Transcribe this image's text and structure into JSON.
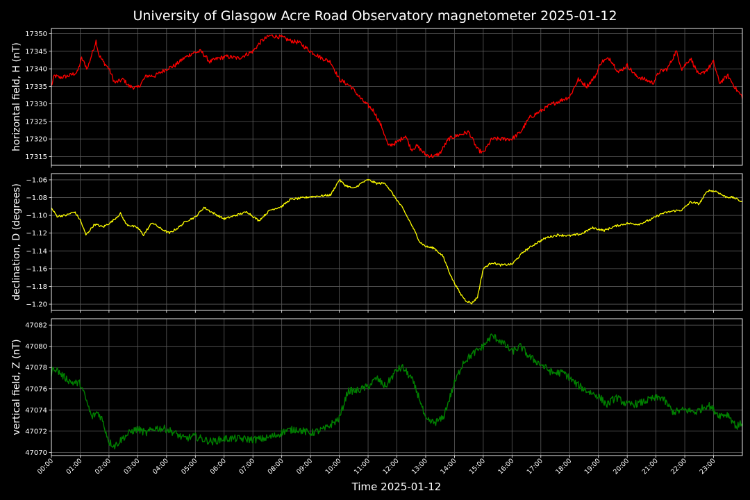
{
  "chart_data": {
    "type": "line",
    "title": "University of Glasgow Acre Road Observatory magnetometer 2025-01-12",
    "xlabel": "Time 2025-01-12",
    "x_ticks": [
      "00:00",
      "01:00",
      "02:00",
      "03:00",
      "04:00",
      "05:00",
      "06:00",
      "07:00",
      "08:00",
      "09:00",
      "10:00",
      "11:00",
      "12:00",
      "13:00",
      "14:00",
      "15:00",
      "16:00",
      "17:00",
      "18:00",
      "19:00",
      "20:00",
      "21:00",
      "22:00",
      "23:00"
    ],
    "xlim_hours": [
      0,
      24
    ],
    "grid": true,
    "background": "#000000",
    "panels": [
      {
        "ylabel": "horizontal field, H (nT)",
        "color": "#ff0000",
        "ylim": [
          17312.5,
          17351.5
        ],
        "yticks": [
          17315,
          17320,
          17325,
          17330,
          17335,
          17340,
          17345,
          17350
        ],
        "noise": 0.6,
        "x_hours": [
          0,
          0.1,
          0.3,
          0.6,
          0.9,
          1.05,
          1.25,
          1.55,
          1.65,
          1.8,
          2.0,
          2.2,
          2.5,
          2.7,
          3.0,
          3.3,
          3.6,
          4.0,
          4.3,
          4.6,
          4.9,
          5.2,
          5.5,
          5.8,
          6.1,
          6.5,
          7.0,
          7.3,
          7.6,
          8.0,
          8.3,
          8.6,
          9.0,
          9.4,
          9.7,
          10.0,
          10.4,
          10.8,
          11.2,
          11.5,
          11.7,
          12.0,
          12.3,
          12.5,
          12.7,
          13.0,
          13.3,
          13.5,
          13.8,
          14.1,
          14.5,
          14.8,
          15.0,
          15.3,
          15.6,
          16.0,
          16.3,
          16.6,
          17.0,
          17.4,
          17.7,
          18.0,
          18.3,
          18.6,
          18.9,
          19.1,
          19.4,
          19.7,
          20.0,
          20.3,
          20.6,
          20.9,
          21.1,
          21.4,
          21.7,
          21.9,
          22.2,
          22.5,
          22.8,
          23.0,
          23.2,
          23.5,
          23.8,
          24.0
        ],
        "values": [
          17335,
          17338,
          17337.5,
          17338,
          17339,
          17343,
          17340,
          17348,
          17344,
          17342,
          17340,
          17336,
          17337,
          17335,
          17334.5,
          17338,
          17338,
          17340,
          17341,
          17343,
          17344.5,
          17345,
          17342,
          17343,
          17343.5,
          17343,
          17345,
          17348,
          17349.5,
          17349,
          17348,
          17347.5,
          17345,
          17343,
          17342,
          17337,
          17335,
          17331,
          17328,
          17323,
          17318,
          17319,
          17321,
          17317,
          17318,
          17315.5,
          17315,
          17316,
          17320,
          17321,
          17322,
          17317,
          17316,
          17320,
          17320,
          17320,
          17322,
          17326,
          17328,
          17330,
          17331,
          17332,
          17337,
          17335,
          17338,
          17342,
          17343,
          17339,
          17341,
          17338,
          17337,
          17336,
          17339,
          17340,
          17345,
          17340,
          17343,
          17338,
          17340,
          17342,
          17336,
          17338,
          17334,
          17332
        ]
      },
      {
        "ylabel": "declination, D (degrees)",
        "color": "#ffff00",
        "ylim": [
          -1.207,
          -1.053
        ],
        "yticks": [
          -1.2,
          -1.18,
          -1.16,
          -1.14,
          -1.12,
          -1.1,
          -1.08,
          -1.06
        ],
        "noise": 0.0012,
        "x_hours": [
          0,
          0.2,
          0.5,
          0.8,
          1.0,
          1.2,
          1.5,
          1.8,
          2.1,
          2.4,
          2.6,
          2.8,
          3.0,
          3.2,
          3.5,
          3.8,
          4.1,
          4.4,
          4.7,
          5.0,
          5.3,
          5.6,
          6.0,
          6.4,
          6.8,
          7.2,
          7.6,
          8.0,
          8.3,
          8.6,
          9.0,
          9.4,
          9.7,
          10.0,
          10.2,
          10.5,
          10.8,
          11.0,
          11.3,
          11.6,
          11.9,
          12.2,
          12.5,
          12.8,
          13.0,
          13.3,
          13.6,
          13.9,
          14.2,
          14.4,
          14.6,
          14.8,
          15.0,
          15.3,
          15.6,
          16.0,
          16.4,
          16.8,
          17.2,
          17.6,
          18.0,
          18.4,
          18.8,
          19.2,
          19.6,
          20.0,
          20.4,
          20.8,
          21.2,
          21.6,
          21.9,
          22.2,
          22.5,
          22.8,
          23.1,
          23.4,
          23.7,
          24.0
        ],
        "values": [
          -1.092,
          -1.101,
          -1.1,
          -1.096,
          -1.105,
          -1.122,
          -1.11,
          -1.113,
          -1.107,
          -1.098,
          -1.11,
          -1.112,
          -1.114,
          -1.122,
          -1.108,
          -1.115,
          -1.12,
          -1.114,
          -1.106,
          -1.102,
          -1.091,
          -1.097,
          -1.104,
          -1.1,
          -1.096,
          -1.106,
          -1.094,
          -1.09,
          -1.082,
          -1.081,
          -1.079,
          -1.078,
          -1.077,
          -1.06,
          -1.066,
          -1.07,
          -1.063,
          -1.06,
          -1.064,
          -1.064,
          -1.078,
          -1.092,
          -1.11,
          -1.13,
          -1.135,
          -1.137,
          -1.146,
          -1.17,
          -1.188,
          -1.196,
          -1.199,
          -1.192,
          -1.16,
          -1.153,
          -1.156,
          -1.155,
          -1.141,
          -1.132,
          -1.125,
          -1.122,
          -1.123,
          -1.121,
          -1.114,
          -1.117,
          -1.112,
          -1.109,
          -1.11,
          -1.105,
          -1.098,
          -1.095,
          -1.094,
          -1.085,
          -1.087,
          -1.072,
          -1.073,
          -1.079,
          -1.08,
          -1.085
        ]
      },
      {
        "ylabel": "vertical field, Z (nT)",
        "color": "#008000",
        "ylim": [
          47069.7,
          47082.6
        ],
        "yticks": [
          47070,
          47072,
          47074,
          47076,
          47078,
          47080,
          47082
        ],
        "noise": 0.35,
        "x_hours": [
          0,
          0.1,
          0.4,
          0.7,
          1.0,
          1.2,
          1.4,
          1.6,
          1.75,
          2.0,
          2.2,
          2.5,
          2.8,
          3.0,
          3.3,
          3.6,
          4.0,
          4.3,
          4.6,
          5.0,
          5.3,
          5.6,
          6.0,
          6.5,
          7.0,
          7.4,
          7.8,
          8.1,
          8.5,
          9.0,
          9.5,
          10.0,
          10.3,
          10.6,
          11.0,
          11.3,
          11.6,
          12.0,
          12.2,
          12.5,
          12.8,
          13.0,
          13.3,
          13.6,
          14.0,
          14.3,
          14.6,
          15.0,
          15.3,
          15.6,
          16.0,
          16.3,
          16.6,
          17.0,
          17.4,
          17.8,
          18.2,
          18.6,
          19.0,
          19.3,
          19.6,
          20.0,
          20.4,
          20.8,
          21.2,
          21.6,
          22.0,
          22.4,
          22.8,
          23.2,
          23.5,
          23.8,
          24.0
        ],
        "values": [
          47077.5,
          47078,
          47077.2,
          47076.6,
          47076.5,
          47075,
          47073.3,
          47073.8,
          47073.2,
          47071.0,
          47070.6,
          47071.4,
          47072.0,
          47072.2,
          47071.8,
          47072.3,
          47072.2,
          47071.8,
          47071.3,
          47071.5,
          47071.2,
          47071.0,
          47071.3,
          47071.3,
          47071.2,
          47071.3,
          47071.6,
          47072.0,
          47072.2,
          47071.8,
          47072.2,
          47073.2,
          47075.8,
          47075.8,
          47076.2,
          47077.0,
          47076.2,
          47077.8,
          47078.0,
          47077.0,
          47075.0,
          47073.0,
          47072.8,
          47073.2,
          47076.5,
          47078.5,
          47079.2,
          47080.0,
          47081.0,
          47080.5,
          47079.5,
          47080.0,
          47079.0,
          47078.3,
          47077.5,
          47077.5,
          47076.5,
          47075.8,
          47075.3,
          47074.5,
          47075.2,
          47074.5,
          47074.6,
          47075.0,
          47075.2,
          47073.8,
          47074.0,
          47073.8,
          47074.5,
          47073.5,
          47073.6,
          47072.4,
          47072.8
        ]
      }
    ]
  }
}
